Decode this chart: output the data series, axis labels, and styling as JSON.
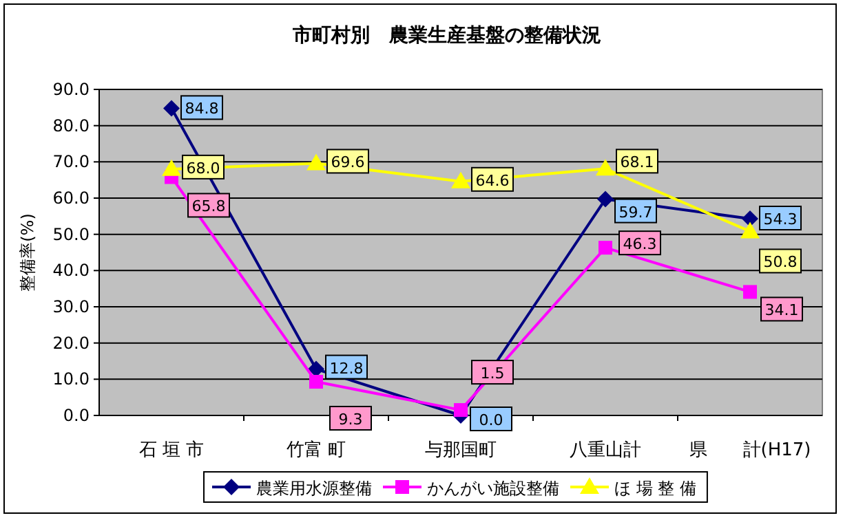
{
  "chart_data": {
    "type": "line",
    "title": "市町村別　農業生産基盤の整備状況",
    "ylabel": "整備率(%)",
    "categories": [
      "石 垣 市",
      "竹富 町",
      "与那国町",
      "八重山計",
      "県　　計(H17)"
    ],
    "ylim": [
      0,
      90
    ],
    "yticks": [
      {
        "value": 0,
        "label": "0.0"
      },
      {
        "value": 10,
        "label": "10.0"
      },
      {
        "value": 20,
        "label": "20.0"
      },
      {
        "value": 30,
        "label": "30.0"
      },
      {
        "value": 40,
        "label": "40.0"
      },
      {
        "value": 50,
        "label": "50.0"
      },
      {
        "value": 60,
        "label": "60.0"
      },
      {
        "value": 70,
        "label": "70.0"
      },
      {
        "value": 80,
        "label": "80.0"
      },
      {
        "value": 90,
        "label": "90.0"
      }
    ],
    "grid": "y",
    "legend": "bottom",
    "series": [
      {
        "name": "農業用水源整備",
        "color": "#000080",
        "marker": "diamond",
        "values": [
          84.8,
          12.8,
          0.0,
          59.7,
          54.3
        ],
        "value_labels": [
          "84.8",
          "12.8",
          "0.0",
          "59.7",
          "54.3"
        ]
      },
      {
        "name": "かんがい施設整備",
        "color": "#ff00ff",
        "marker": "square",
        "values": [
          65.8,
          9.3,
          1.5,
          46.3,
          34.1
        ],
        "value_labels": [
          "65.8",
          "9.3",
          "1.5",
          "46.3",
          "34.1"
        ]
      },
      {
        "name": "ほ 場 整 備",
        "color": "#ffff00",
        "marker": "triangle",
        "values": [
          68.0,
          69.6,
          64.6,
          68.1,
          50.8
        ],
        "value_labels": [
          "68.0",
          "69.6",
          "64.6",
          "68.1",
          "50.8"
        ]
      }
    ]
  }
}
